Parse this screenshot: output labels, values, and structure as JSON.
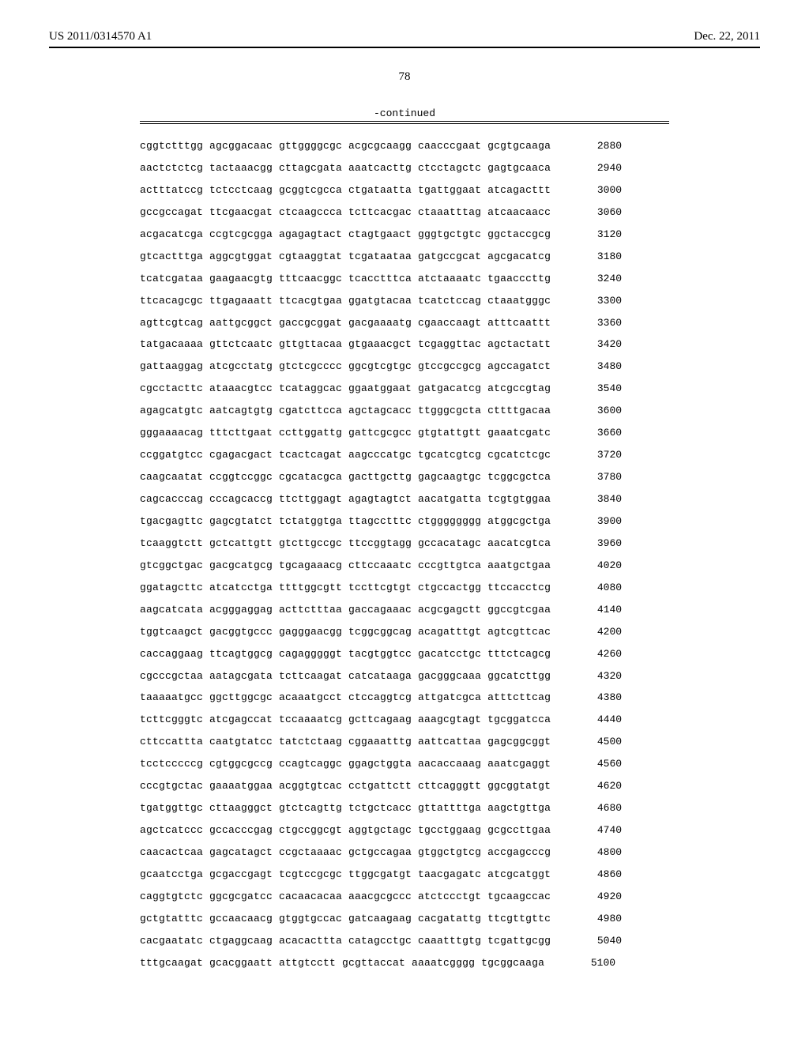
{
  "header": {
    "publication_number": "US 2011/0314570 A1",
    "publication_date": "Dec. 22, 2011"
  },
  "page_number": "78",
  "continued_label": "-continued",
  "sequence": {
    "rows": [
      {
        "groups": [
          "cggtctttgg",
          "agcggacaac",
          "gttggggcgc",
          "acgcgcaagg",
          "caacccgaat",
          "gcgtgcaaga"
        ],
        "pos": 2880
      },
      {
        "groups": [
          "aactctctcg",
          "tactaaacgg",
          "cttagcgata",
          "aaatcacttg",
          "ctcctagctc",
          "gagtgcaaca"
        ],
        "pos": 2940
      },
      {
        "groups": [
          "actttatccg",
          "tctcctcaag",
          "gcggtcgcca",
          "ctgataatta",
          "tgattggaat",
          "atcagacttt"
        ],
        "pos": 3000
      },
      {
        "groups": [
          "gccgccagat",
          "ttcgaacgat",
          "ctcaagccca",
          "tcttcacgac",
          "ctaaatttag",
          "atcaacaacc"
        ],
        "pos": 3060
      },
      {
        "groups": [
          "acgacatcga",
          "ccgtcgcgga",
          "agagagtact",
          "ctagtgaact",
          "gggtgctgtc",
          "ggctaccgcg"
        ],
        "pos": 3120
      },
      {
        "groups": [
          "gtcactttga",
          "aggcgtggat",
          "cgtaaggtat",
          "tcgataataa",
          "gatgccgcat",
          "agcgacatcg"
        ],
        "pos": 3180
      },
      {
        "groups": [
          "tcatcgataa",
          "gaagaacgtg",
          "tttcaacggc",
          "tcacctttca",
          "atctaaaatc",
          "tgaacccttg"
        ],
        "pos": 3240
      },
      {
        "groups": [
          "ttcacagcgc",
          "ttgagaaatt",
          "ttcacgtgaa",
          "ggatgtacaa",
          "tcatctccag",
          "ctaaatgggc"
        ],
        "pos": 3300
      },
      {
        "groups": [
          "agttcgtcag",
          "aattgcggct",
          "gaccgcggat",
          "gacgaaaatg",
          "cgaaccaagt",
          "atttcaattt"
        ],
        "pos": 3360
      },
      {
        "groups": [
          "tatgacaaaa",
          "gttctcaatc",
          "gttgttacaa",
          "gtgaaacgct",
          "tcgaggttac",
          "agctactatt"
        ],
        "pos": 3420
      },
      {
        "groups": [
          "gattaaggag",
          "atcgcctatg",
          "gtctcgcccc",
          "ggcgtcgtgc",
          "gtccgccgcg",
          "agccagatct"
        ],
        "pos": 3480
      },
      {
        "groups": [
          "cgcctacttc",
          "ataaacgtcc",
          "tcataggcac",
          "ggaatggaat",
          "gatgacatcg",
          "atcgccgtag"
        ],
        "pos": 3540
      },
      {
        "groups": [
          "agagcatgtc",
          "aatcagtgtg",
          "cgatcttcca",
          "agctagcacc",
          "ttgggcgcta",
          "cttttgacaa"
        ],
        "pos": 3600
      },
      {
        "groups": [
          "gggaaaacag",
          "tttcttgaat",
          "ccttggattg",
          "gattcgcgcc",
          "gtgtattgtt",
          "gaaatcgatc"
        ],
        "pos": 3660
      },
      {
        "groups": [
          "ccggatgtcc",
          "cgagacgact",
          "tcactcagat",
          "aagcccatgc",
          "tgcatcgtcg",
          "cgcatctcgc"
        ],
        "pos": 3720
      },
      {
        "groups": [
          "caagcaatat",
          "ccggtccggc",
          "cgcatacgca",
          "gacttgcttg",
          "gagcaagtgc",
          "tcggcgctca"
        ],
        "pos": 3780
      },
      {
        "groups": [
          "cagcacccag",
          "cccagcaccg",
          "ttcttggagt",
          "agagtagtct",
          "aacatgatta",
          "tcgtgtggaa"
        ],
        "pos": 3840
      },
      {
        "groups": [
          "tgacgagttc",
          "gagcgtatct",
          "tctatggtga",
          "ttagcctttc",
          "ctgggggggg",
          "atggcgctga"
        ],
        "pos": 3900
      },
      {
        "groups": [
          "tcaaggtctt",
          "gctcattgtt",
          "gtcttgccgc",
          "ttccggtagg",
          "gccacatagc",
          "aacatcgtca"
        ],
        "pos": 3960
      },
      {
        "groups": [
          "gtcggctgac",
          "gacgcatgcg",
          "tgcagaaacg",
          "cttccaaatc",
          "cccgttgtca",
          "aaatgctgaa"
        ],
        "pos": 4020
      },
      {
        "groups": [
          "ggatagcttc",
          "atcatcctga",
          "ttttggcgtt",
          "tccttcgtgt",
          "ctgccactgg",
          "ttccacctcg"
        ],
        "pos": 4080
      },
      {
        "groups": [
          "aagcatcata",
          "acgggaggag",
          "acttctttaa",
          "gaccagaaac",
          "acgcgagctt",
          "ggccgtcgaa"
        ],
        "pos": 4140
      },
      {
        "groups": [
          "tggtcaagct",
          "gacggtgccc",
          "gagggaacgg",
          "tcggcggcag",
          "acagatttgt",
          "agtcgttcac"
        ],
        "pos": 4200
      },
      {
        "groups": [
          "caccaggaag",
          "ttcagtggcg",
          "cagagggggt",
          "tacgtggtcc",
          "gacatcctgc",
          "tttctcagcg"
        ],
        "pos": 4260
      },
      {
        "groups": [
          "cgcccgctaa",
          "aatagcgata",
          "tcttcaagat",
          "catcataaga",
          "gacgggcaaa",
          "ggcatcttgg"
        ],
        "pos": 4320
      },
      {
        "groups": [
          "taaaaatgcc",
          "ggcttggcgc",
          "acaaatgcct",
          "ctccaggtcg",
          "attgatcgca",
          "atttcttcag"
        ],
        "pos": 4380
      },
      {
        "groups": [
          "tcttcgggtc",
          "atcgagccat",
          "tccaaaatcg",
          "gcttcagaag",
          "aaagcgtagt",
          "tgcggatcca"
        ],
        "pos": 4440
      },
      {
        "groups": [
          "cttccattta",
          "caatgtatcc",
          "tatctctaag",
          "cggaaatttg",
          "aattcattaa",
          "gagcggcggt"
        ],
        "pos": 4500
      },
      {
        "groups": [
          "tcctcccccg",
          "cgtggcgccg",
          "ccagtcaggc",
          "ggagctggta",
          "aacaccaaag",
          "aaatcgaggt"
        ],
        "pos": 4560
      },
      {
        "groups": [
          "cccgtgctac",
          "gaaaatggaa",
          "acggtgtcac",
          "cctgattctt",
          "cttcagggtt",
          "ggcggtatgt"
        ],
        "pos": 4620
      },
      {
        "groups": [
          "tgatggttgc",
          "cttaagggct",
          "gtctcagttg",
          "tctgctcacc",
          "gttattttga",
          "aagctgttga"
        ],
        "pos": 4680
      },
      {
        "groups": [
          "agctcatccc",
          "gccacccgag",
          "ctgccggcgt",
          "aggtgctagc",
          "tgcctggaag",
          "gcgccttgaa"
        ],
        "pos": 4740
      },
      {
        "groups": [
          "caacactcaa",
          "gagcatagct",
          "ccgctaaaac",
          "gctgccagaa",
          "gtggctgtcg",
          "accgagcccg"
        ],
        "pos": 4800
      },
      {
        "groups": [
          "gcaatcctga",
          "gcgaccgagt",
          "tcgtccgcgc",
          "ttggcgatgt",
          "taacgagatc",
          "atcgcatggt"
        ],
        "pos": 4860
      },
      {
        "groups": [
          "caggtgtctc",
          "ggcgcgatcc",
          "cacaacacaa",
          "aaacgcgccc",
          "atctccctgt",
          "tgcaagccac"
        ],
        "pos": 4920
      },
      {
        "groups": [
          "gctgtatttc",
          "gccaacaacg",
          "gtggtgccac",
          "gatcaagaag",
          "cacgatattg",
          "ttcgttgttc"
        ],
        "pos": 4980
      },
      {
        "groups": [
          "cacgaatatc",
          "ctgaggcaag",
          "acacacttta",
          "catagcctgc",
          "caaatttgtg",
          "tcgattgcgg"
        ],
        "pos": 5040
      },
      {
        "groups": [
          "tttgcaagat",
          "gcacggaatt",
          "attgtcctt",
          "gcgttaccat",
          "aaaatcgggg",
          "tgcggcaaga"
        ],
        "pos": 5100
      }
    ]
  }
}
